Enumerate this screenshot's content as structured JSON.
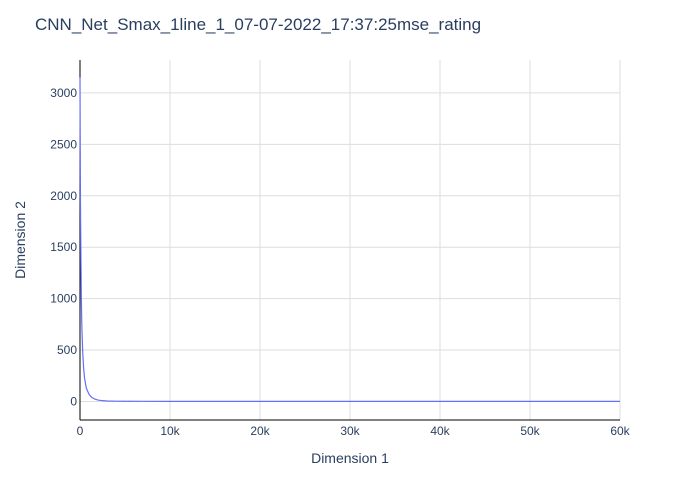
{
  "chart_data": {
    "type": "line",
    "title": "CNN_Net_Smax_1line_1_07-07-2022_17:37:25mse_rating",
    "xlabel": "Dimension 1",
    "ylabel": "Dimension 2",
    "xlim": [
      0,
      60000
    ],
    "ylim": [
      -180,
      3320
    ],
    "x_ticks": [
      0,
      10000,
      20000,
      30000,
      40000,
      50000,
      60000
    ],
    "x_tick_labels": [
      "0",
      "10k",
      "20k",
      "30k",
      "40k",
      "50k",
      "60k"
    ],
    "y_ticks": [
      0,
      500,
      1000,
      1500,
      2000,
      2500,
      3000
    ],
    "y_tick_labels": [
      "0",
      "500",
      "1000",
      "1500",
      "2000",
      "2500",
      "3000"
    ],
    "grid": true,
    "legend": "none",
    "series": [
      {
        "color": "#636efa",
        "x": [
          0,
          20,
          50,
          100,
          150,
          200,
          300,
          400,
          500,
          700,
          1000,
          1300,
          1600,
          2000,
          2500,
          3000,
          4000,
          5000,
          7000,
          10000,
          15000,
          20000,
          30000,
          40000,
          50000,
          60000
        ],
        "y": [
          3150,
          2600,
          1950,
          1400,
          1000,
          750,
          480,
          330,
          230,
          130,
          70,
          40,
          25,
          14,
          8,
          5,
          3,
          2,
          1.5,
          1,
          1,
          1,
          1,
          1,
          1,
          1
        ]
      }
    ]
  }
}
